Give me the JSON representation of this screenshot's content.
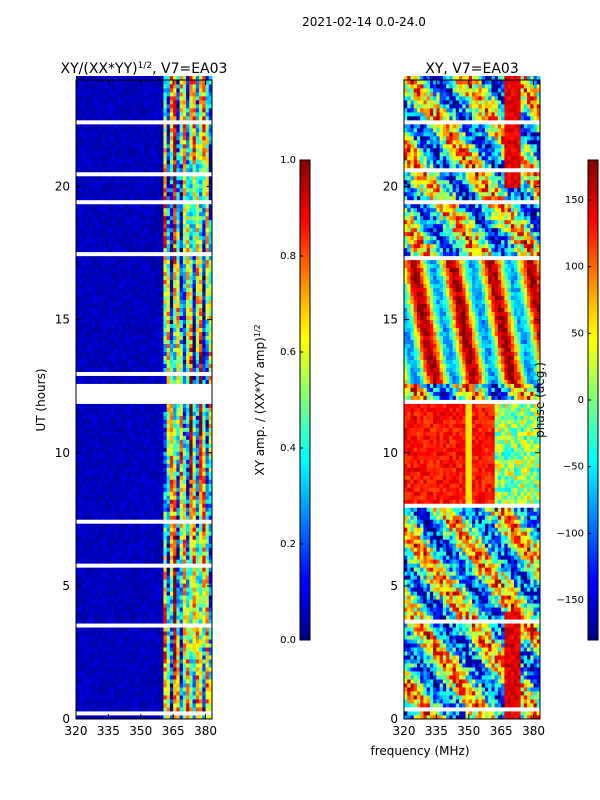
{
  "suptitle": "2021-02-14 0.0-24.0",
  "figure_xlabel": "frequency (MHz)",
  "chart_data": [
    {
      "type": "heatmap",
      "title_main": "XY/(XX*YY)",
      "title_exp": "1/2",
      "title_tail": ", V7=EA03",
      "xlabel": "",
      "ylabel": "UT (hours)",
      "xlim": [
        320,
        383
      ],
      "ylim": [
        0,
        24
      ],
      "xticks": [
        320,
        335,
        350,
        365,
        380
      ],
      "yticks": [
        0,
        5,
        10,
        15,
        20
      ],
      "colorbar": {
        "label_main": "XY amp. / (XX*YY amp)",
        "label_exp": "1/2",
        "range": [
          0.0,
          1.0
        ],
        "ticks": [
          "0.0",
          "0.2",
          "0.4",
          "0.6",
          "0.8",
          "1.0"
        ]
      },
      "gaps_hours": [
        [
          11.85,
          12.65
        ],
        [
          23.05,
          23.15
        ],
        [
          22.3,
          22.45
        ],
        [
          21.85,
          21.95
        ],
        [
          20.45,
          20.6
        ],
        [
          19.3,
          19.45
        ],
        [
          17.35,
          17.5
        ],
        [
          12.9,
          13.0
        ],
        [
          8.05,
          8.15
        ],
        [
          7.4,
          7.5
        ],
        [
          5.7,
          5.8
        ],
        [
          3.5,
          3.65
        ],
        [
          1.6,
          1.7
        ],
        [
          0.2,
          0.3
        ]
      ]
    },
    {
      "type": "heatmap",
      "title": "XY, V7=EA03",
      "xlabel": "",
      "ylabel": "",
      "xlim": [
        320,
        383
      ],
      "ylim": [
        0,
        24
      ],
      "xticks": [
        320,
        335,
        350,
        365,
        380
      ],
      "yticks": [
        0,
        5,
        10,
        15,
        20
      ],
      "colorbar": {
        "label": "phase (deg.)",
        "range": [
          -180,
          180
        ],
        "ticks": [
          "−150",
          "−100",
          "−50",
          "0",
          "50",
          "100",
          "150"
        ]
      },
      "gaps_hours": [
        [
          11.85,
          12.0
        ],
        [
          23.05,
          23.15
        ],
        [
          22.3,
          22.45
        ],
        [
          20.55,
          20.65
        ],
        [
          19.35,
          19.5
        ],
        [
          17.3,
          17.45
        ],
        [
          8.0,
          8.1
        ],
        [
          3.6,
          3.7
        ],
        [
          1.6,
          1.7
        ],
        [
          0.3,
          0.4
        ]
      ]
    }
  ]
}
